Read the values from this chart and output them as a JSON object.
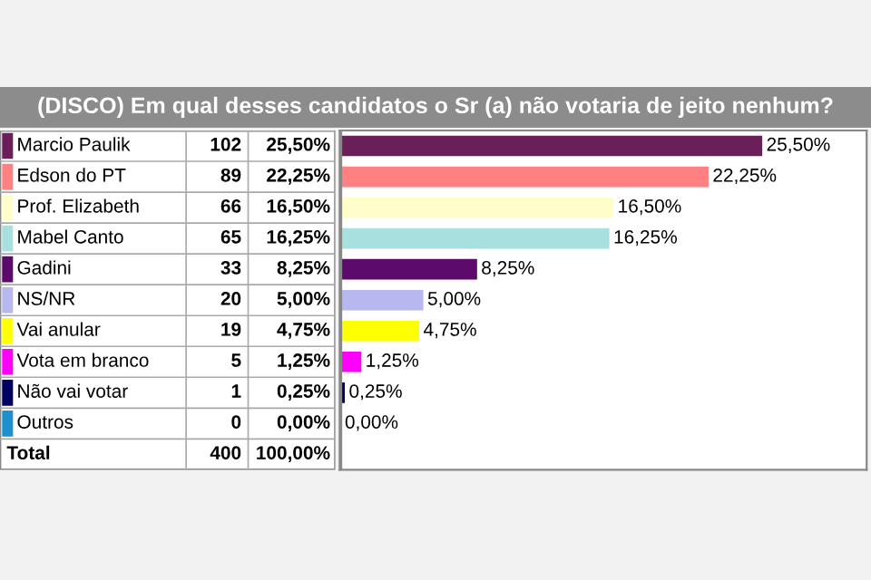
{
  "chart_data": {
    "type": "bar",
    "orientation": "horizontal",
    "title": "(DISCO) Em qual desses candidatos o Sr (a) não votaria de jeito nenhum?",
    "categories": [
      "Marcio Paulik",
      "Edson do PT",
      "Prof. Elizabeth",
      "Mabel Canto",
      "Gadini",
      "NS/NR",
      "Vai anular",
      "Vota em branco",
      "Não vai votar",
      "Outros"
    ],
    "values": [
      25.5,
      22.25,
      16.5,
      16.25,
      8.25,
      5.0,
      4.75,
      1.25,
      0.25,
      0.0
    ],
    "colors": [
      "#6b1f5a",
      "#ff8080",
      "#ffffcc",
      "#a8e0e0",
      "#5c0a6b",
      "#b8b8f0",
      "#ffff00",
      "#ff00ff",
      "#000060",
      "#1e90d0"
    ],
    "value_labels": [
      "25,50%",
      "22,25%",
      "16,50%",
      "16,25%",
      "8,25%",
      "5,00%",
      "4,75%",
      "1,25%",
      "0,25%",
      "0,00%"
    ],
    "annotations": [
      "102",
      "89",
      "66",
      "65",
      "33",
      "20",
      "19",
      "5",
      "1",
      "0",
      "Total",
      "400",
      "100,00%"
    ],
    "legend": false
  }
}
